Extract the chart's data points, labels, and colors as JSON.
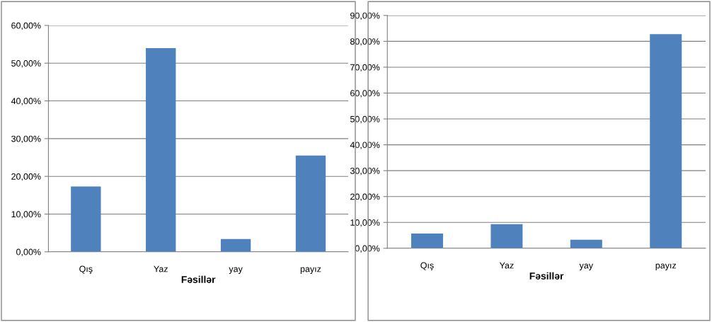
{
  "chart_data": [
    {
      "type": "bar",
      "categories": [
        "Qış",
        "Yaz",
        "yay",
        "payız"
      ],
      "values": [
        17.3,
        54.0,
        3.4,
        25.5
      ],
      "color": "#4f81bd",
      "xlabel": "Fəsillər",
      "ylim": [
        0,
        60
      ],
      "yticks": [
        {
          "value": 0,
          "label": "0,00%"
        },
        {
          "value": 10,
          "label": "10,00%"
        },
        {
          "value": 20,
          "label": "20,00%"
        },
        {
          "value": 30,
          "label": "30,00%"
        },
        {
          "value": 40,
          "label": "40,00%"
        },
        {
          "value": 50,
          "label": "50,00%"
        },
        {
          "value": 60,
          "label": "60,00%"
        }
      ],
      "grid": "y",
      "legend": false
    },
    {
      "type": "bar",
      "categories": [
        "Qış",
        "Yaz",
        "yay",
        "payız"
      ],
      "values": [
        5.7,
        9.3,
        3.3,
        82.8
      ],
      "color": "#4f81bd",
      "xlabel": "Fəsillər",
      "ylim": [
        0,
        90
      ],
      "yticks": [
        {
          "value": 0,
          "label": "0,00%"
        },
        {
          "value": 10,
          "label": "10,00%"
        },
        {
          "value": 20,
          "label": "20,00%"
        },
        {
          "value": 30,
          "label": "30,00%"
        },
        {
          "value": 40,
          "label": "40,00%"
        },
        {
          "value": 50,
          "label": "50,00%"
        },
        {
          "value": 60,
          "label": "60,00%"
        },
        {
          "value": 70,
          "label": "70,00%"
        },
        {
          "value": 80,
          "label": "80,00%"
        },
        {
          "value": 90,
          "label": "90,00%"
        }
      ],
      "grid": "y",
      "legend": false
    }
  ]
}
